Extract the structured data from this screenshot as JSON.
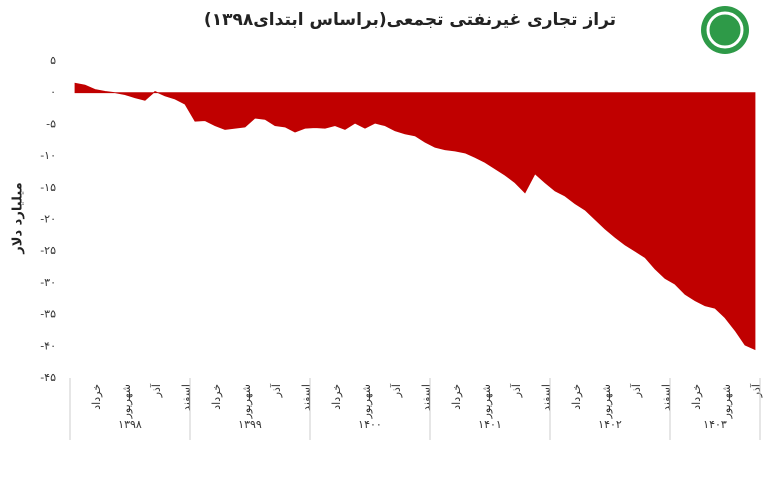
{
  "chart_data": {
    "type": "area",
    "title": "تراز تجاری غیرنفتی تجمعی(براساس ابتدای۱۳۹۸)",
    "y_label": "میلیارد دلار",
    "color": "#c00000",
    "ylim": [
      -45,
      5
    ],
    "yticks": [
      {
        "value": 5,
        "label": "۵"
      },
      {
        "value": 0,
        "label": "۰"
      },
      {
        "value": -5,
        "label": "-۵"
      },
      {
        "value": -10,
        "label": "-۱۰"
      },
      {
        "value": -15,
        "label": "-۱۵"
      },
      {
        "value": -20,
        "label": "-۲۰"
      },
      {
        "value": -25,
        "label": "-۲۵"
      },
      {
        "value": -30,
        "label": "-۳۰"
      },
      {
        "value": -35,
        "label": "-۳۵"
      },
      {
        "value": -40,
        "label": "-۴۰"
      },
      {
        "value": -45,
        "label": "-۴۵"
      }
    ],
    "x_groups": [
      "۱۳۹۸",
      "۱۳۹۹",
      "۱۴۰۰",
      "۱۴۰۱",
      "۱۴۰۲",
      "۱۴۰۳"
    ],
    "categories": [
      null,
      null,
      "خرداد",
      null,
      null,
      "شهریور",
      null,
      null,
      "آذر",
      null,
      null,
      "اسفند",
      null,
      null,
      "خرداد",
      null,
      null,
      "شهریور",
      null,
      null,
      "آذر",
      null,
      null,
      "اسفند",
      null,
      null,
      "خرداد",
      null,
      null,
      "شهریور",
      null,
      null,
      "آذر",
      null,
      null,
      "اسفند",
      null,
      null,
      "خرداد",
      null,
      null,
      "شهریور",
      null,
      null,
      "آذر",
      null,
      null,
      "اسفند",
      null,
      null,
      "خرداد",
      null,
      null,
      "شهریور",
      null,
      null,
      "آذر",
      null,
      null,
      "اسفند",
      null,
      null,
      "خرداد",
      null,
      null,
      "شهریور",
      null,
      null,
      "آذر"
    ],
    "values": [
      1.5,
      1.2,
      0.5,
      0.2,
      0,
      -0.3,
      -0.8,
      -1.2,
      0.2,
      -0.5,
      -1,
      -1.8,
      -4.5,
      -4.4,
      -5.2,
      -5.8,
      -5.6,
      -5.4,
      -4,
      -4.2,
      -5.2,
      -5.4,
      -6.2,
      -5.6,
      -5.5,
      -5.6,
      -5.2,
      -5.8,
      -4.8,
      -5.6,
      -4.8,
      -5.2,
      -6,
      -6.5,
      -6.8,
      -7.8,
      -8.6,
      -9,
      -9.2,
      -9.5,
      -10.2,
      -11,
      -12,
      -13,
      -14.2,
      -15.8,
      -12.8,
      -14.2,
      -15.5,
      -16.3,
      -17.5,
      -18.5,
      -20,
      -21.5,
      -22.8,
      -24,
      -25,
      -26,
      -27.8,
      -29.3,
      -30.2,
      -31.8,
      -32.8,
      -33.6,
      -34,
      -35.5,
      -37.5,
      -39.8,
      -40.5
    ]
  }
}
